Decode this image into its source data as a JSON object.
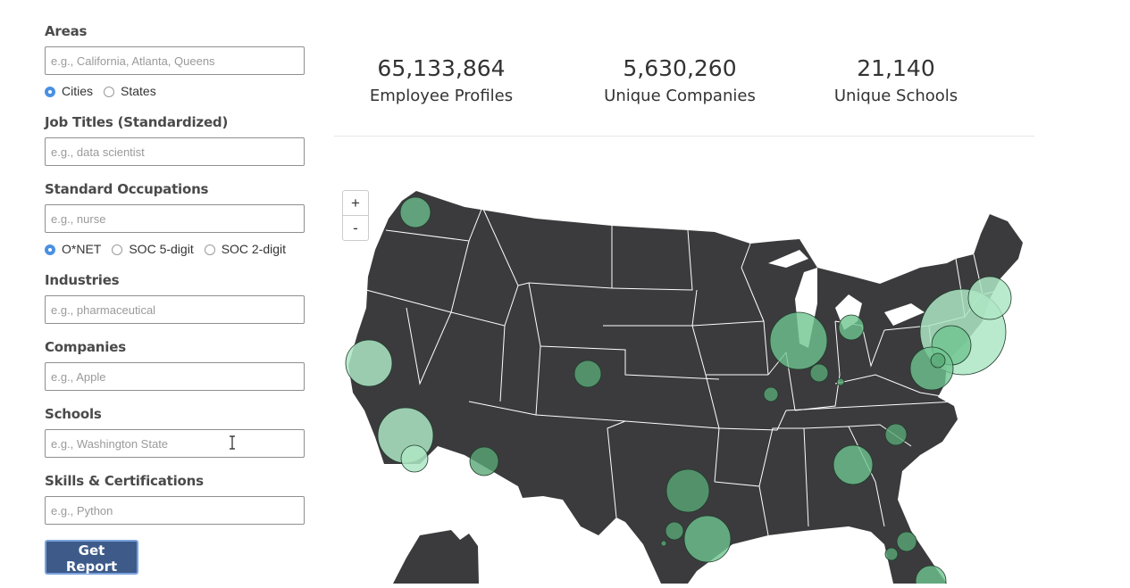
{
  "form": {
    "areas": {
      "label": "Areas",
      "placeholder": "e.g., California, Atlanta, Queens",
      "options": [
        {
          "label": "Cities",
          "selected": true
        },
        {
          "label": "States",
          "selected": false
        }
      ]
    },
    "job_titles": {
      "label": "Job Titles (Standardized)",
      "placeholder": "e.g., data scientist"
    },
    "occupations": {
      "label": "Standard Occupations",
      "placeholder": "e.g., nurse",
      "options": [
        {
          "label": "O*NET",
          "selected": true
        },
        {
          "label": "SOC 5-digit",
          "selected": false
        },
        {
          "label": "SOC 2-digit",
          "selected": false
        }
      ]
    },
    "industries": {
      "label": "Industries",
      "placeholder": "e.g., pharmaceutical"
    },
    "companies": {
      "label": "Companies",
      "placeholder": "e.g., Apple"
    },
    "schools": {
      "label": "Schools",
      "placeholder": "e.g., Washington State"
    },
    "skills": {
      "label": "Skills & Certifications",
      "placeholder": "e.g., Python"
    },
    "submit_label": "Get Report"
  },
  "stats": [
    {
      "value": "65,133,864",
      "label": "Employee Profiles"
    },
    {
      "value": "5,630,260",
      "label": "Unique Companies"
    },
    {
      "value": "21,140",
      "label": "Unique Schools"
    }
  ],
  "map_controls": {
    "zoom_in": "+",
    "zoom_out": "-"
  },
  "colors": {
    "land": "#3b3b3d",
    "bubble": "#6fc490",
    "bubble_light": "#aee6c4",
    "accent": "#4a90e2",
    "button": "#3d5a89"
  },
  "icons": {
    "cursor": "text-cursor-icon"
  }
}
